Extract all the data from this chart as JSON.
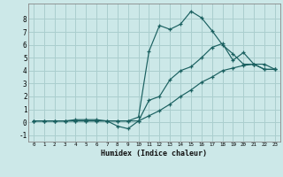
{
  "xlabel": "Humidex (Indice chaleur)",
  "bg_color": "#cce8e8",
  "grid_color": "#aacece",
  "line_color": "#1a6060",
  "xlim": [
    -0.5,
    23.5
  ],
  "ylim": [
    -1.5,
    9.2
  ],
  "xticks": [
    0,
    1,
    2,
    3,
    4,
    5,
    6,
    7,
    8,
    9,
    10,
    11,
    12,
    13,
    14,
    15,
    16,
    17,
    18,
    19,
    20,
    21,
    22,
    23
  ],
  "yticks": [
    -1,
    0,
    1,
    2,
    3,
    4,
    5,
    6,
    7,
    8
  ],
  "series1_x": [
    0,
    1,
    2,
    3,
    4,
    5,
    6,
    7,
    8,
    9,
    10,
    11,
    12,
    13,
    14,
    15,
    16,
    17,
    18,
    19,
    20,
    21,
    22,
    23
  ],
  "series1_y": [
    0.1,
    0.1,
    0.1,
    0.1,
    0.1,
    0.1,
    0.1,
    0.1,
    0.1,
    0.1,
    0.4,
    5.5,
    7.5,
    7.2,
    7.6,
    8.6,
    8.1,
    7.1,
    6.0,
    5.3,
    4.5,
    4.5,
    4.1,
    4.1
  ],
  "series2_x": [
    0,
    1,
    2,
    3,
    4,
    5,
    6,
    7,
    8,
    9,
    10,
    11,
    12,
    13,
    14,
    15,
    16,
    17,
    18,
    19,
    20,
    21,
    22,
    23
  ],
  "series2_y": [
    0.1,
    0.1,
    0.1,
    0.1,
    0.2,
    0.2,
    0.2,
    0.1,
    -0.3,
    -0.5,
    0.1,
    1.7,
    2.0,
    3.3,
    4.0,
    4.3,
    5.0,
    5.8,
    6.1,
    4.8,
    5.4,
    4.5,
    4.5,
    4.1
  ],
  "series3_x": [
    0,
    1,
    2,
    3,
    4,
    5,
    6,
    7,
    8,
    9,
    10,
    11,
    12,
    13,
    14,
    15,
    16,
    17,
    18,
    19,
    20,
    21,
    22,
    23
  ],
  "series3_y": [
    0.1,
    0.1,
    0.1,
    0.1,
    0.1,
    0.1,
    0.1,
    0.1,
    0.1,
    0.1,
    0.1,
    0.5,
    0.9,
    1.4,
    2.0,
    2.5,
    3.1,
    3.5,
    4.0,
    4.2,
    4.4,
    4.5,
    4.1,
    4.1
  ]
}
